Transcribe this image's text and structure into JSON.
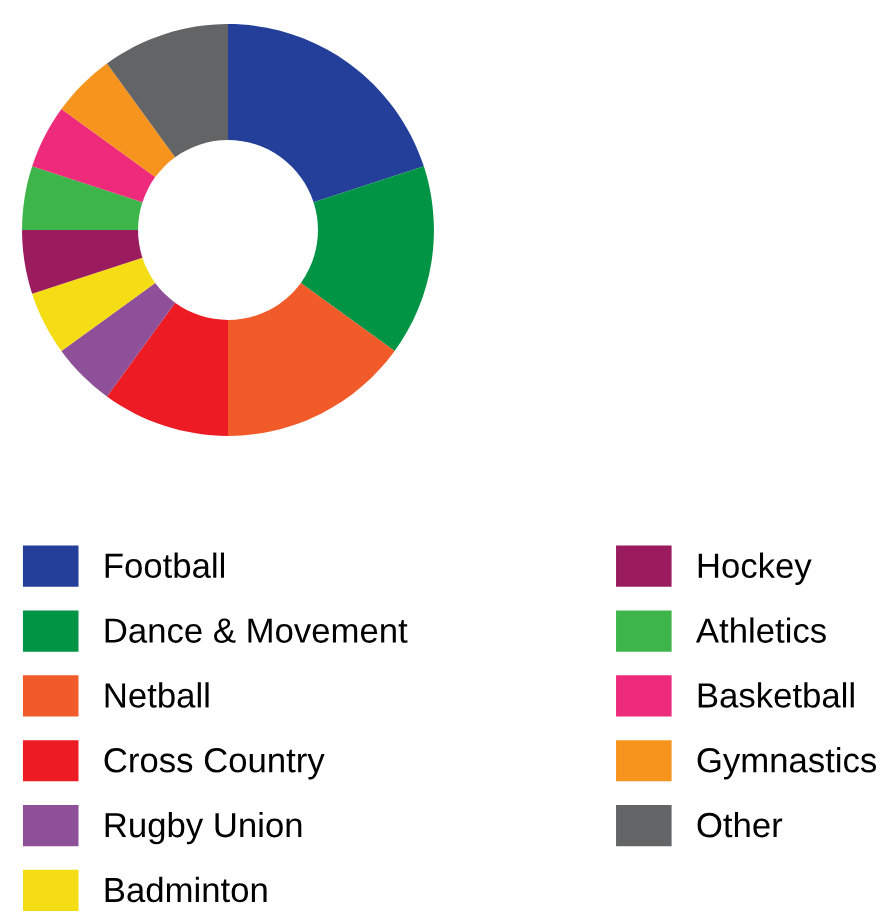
{
  "chart_data": {
    "type": "donut",
    "categories": [
      "Football",
      "Dance & Movement",
      "Netball",
      "Cross Country",
      "Rugby Union",
      "Badminton",
      "Hockey",
      "Athletics",
      "Basketball",
      "Gymnastics",
      "Other"
    ],
    "values": [
      20,
      15,
      15,
      10,
      5,
      5,
      5,
      5,
      5,
      5,
      10
    ],
    "colors": [
      "#233f99",
      "#009444",
      "#f15a29",
      "#ed1c24",
      "#8e5199",
      "#f5dd16",
      "#9b1b5f",
      "#3db54a",
      "#ee2a7b",
      "#f7941d",
      "#636466"
    ],
    "legend": "bottom"
  }
}
